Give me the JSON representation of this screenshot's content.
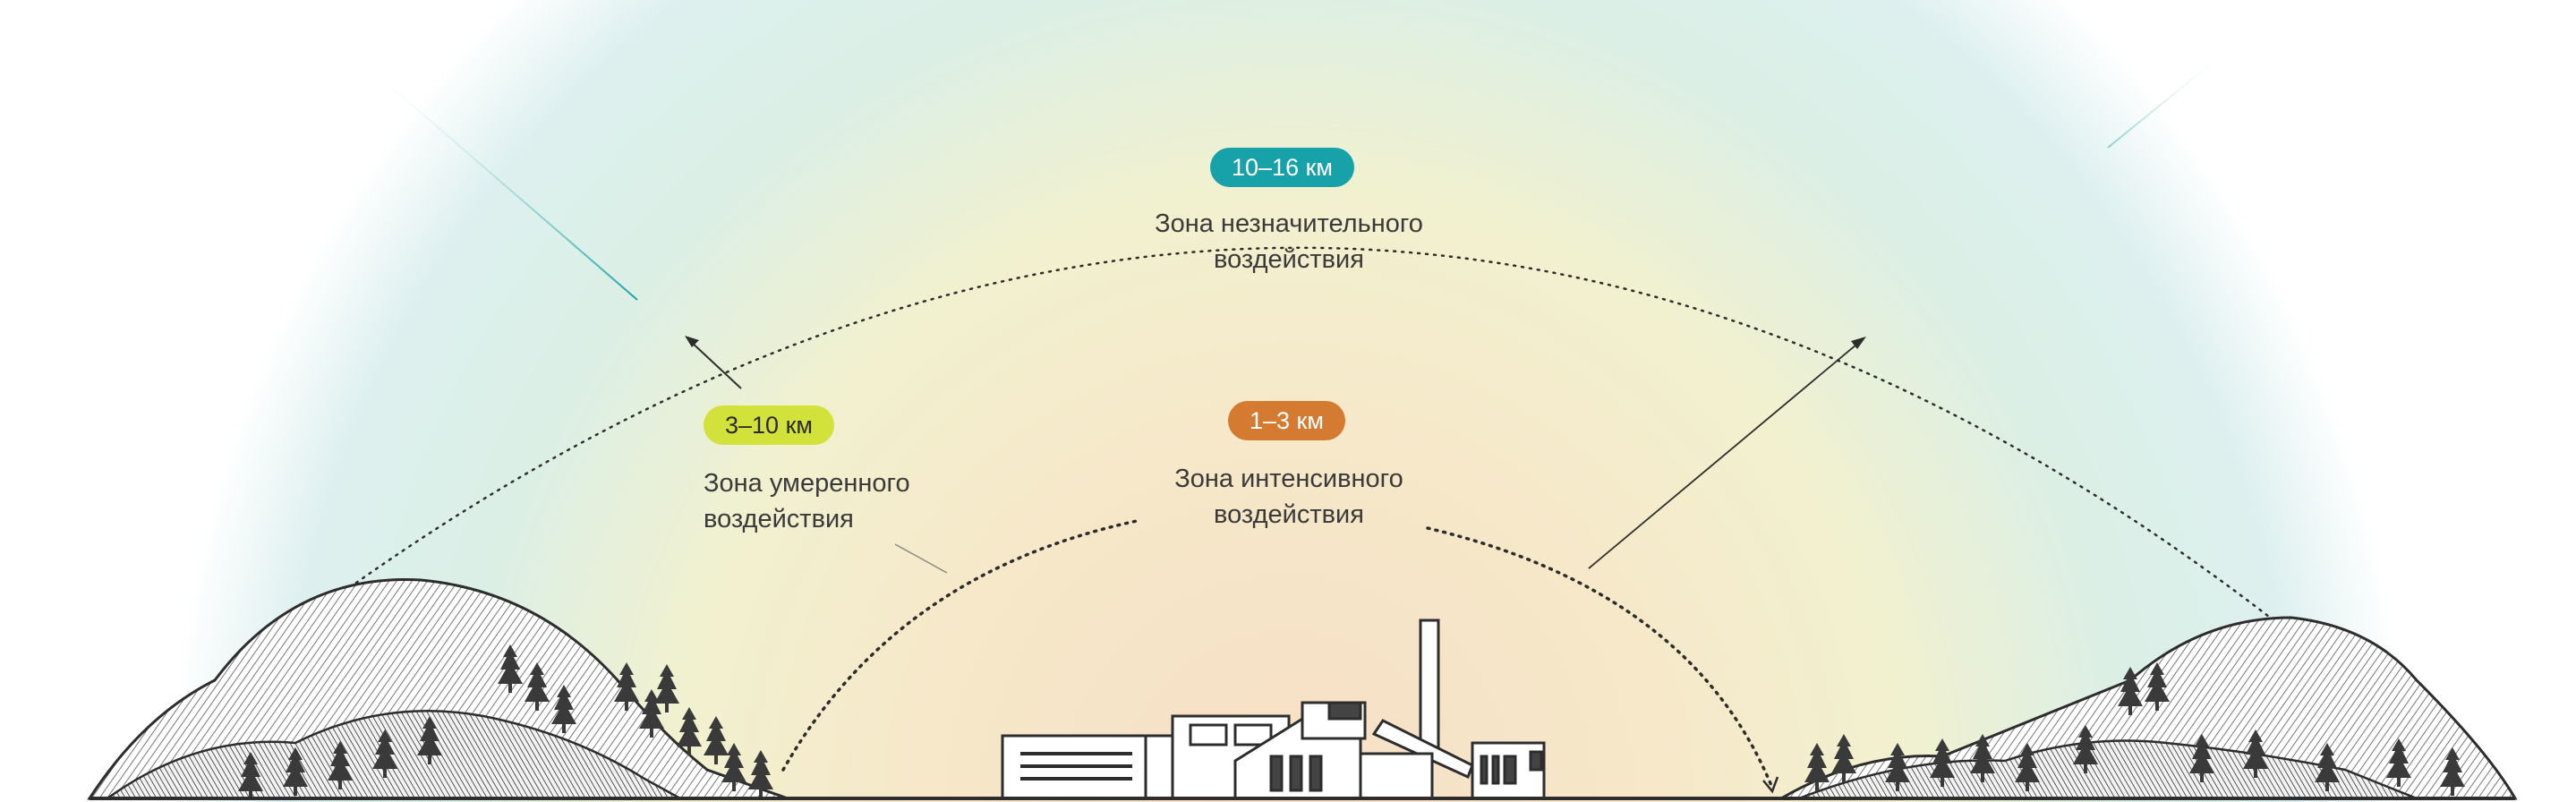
{
  "zones": {
    "insignificant": {
      "distance": "10–16 км",
      "name_line1": "Зона незначительного",
      "name_line2": "воздействия",
      "color": "#17a2a9"
    },
    "moderate": {
      "distance": "3–10 км",
      "name_line1": "Зона умеренного",
      "name_line2": "воздействия",
      "color": "#d3e13b"
    },
    "intensive": {
      "distance": "1–3 км",
      "name_line1": "Зона интенсивного",
      "name_line2": "воздействия",
      "color": "#d47a31"
    }
  },
  "colors": {
    "ink": "#2d2d2d",
    "glow_warm": "#f6dcc0",
    "glow_mid": "#f3f0c6",
    "glow_cool": "#cfe9e8"
  }
}
